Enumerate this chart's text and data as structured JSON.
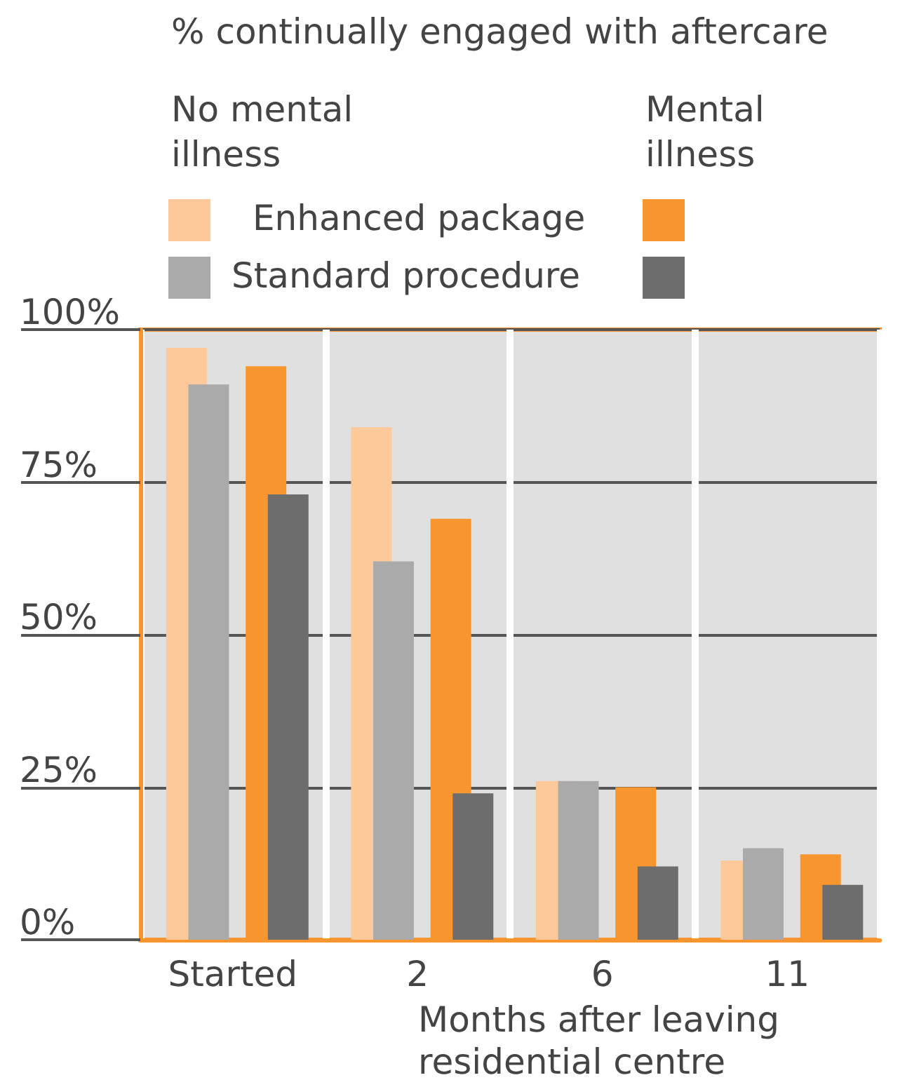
{
  "chart_data": {
    "type": "bar",
    "title": "% continually engaged with aftercare",
    "xlabel": "Months after leaving residential centre",
    "annotations": [
      "No mental illness",
      "Mental illness"
    ],
    "categories": [
      "Started",
      "2",
      "6",
      "11"
    ],
    "series": [
      {
        "name": "Enhanced package",
        "color": "#fdc89a",
        "values": [
          97,
          84,
          26,
          13
        ]
      },
      {
        "name": "Standard procedure",
        "color": "#aaaaaa",
        "values": [
          91,
          62,
          26,
          15
        ]
      },
      {
        "color": "#f7962f",
        "values": [
          94,
          69,
          25,
          14
        ]
      },
      {
        "color": "#6d6d6d",
        "values": [
          73,
          24,
          12,
          9
        ]
      }
    ],
    "ylim": [
      0,
      100
    ],
    "yticks": [
      {
        "value": 0,
        "label": "0%"
      },
      {
        "value": 25,
        "label": "25%"
      },
      {
        "value": 50,
        "label": "50%"
      },
      {
        "value": 75,
        "label": "75%"
      },
      {
        "value": 100,
        "label": "100%"
      }
    ],
    "grid": "y",
    "legend": "top"
  }
}
